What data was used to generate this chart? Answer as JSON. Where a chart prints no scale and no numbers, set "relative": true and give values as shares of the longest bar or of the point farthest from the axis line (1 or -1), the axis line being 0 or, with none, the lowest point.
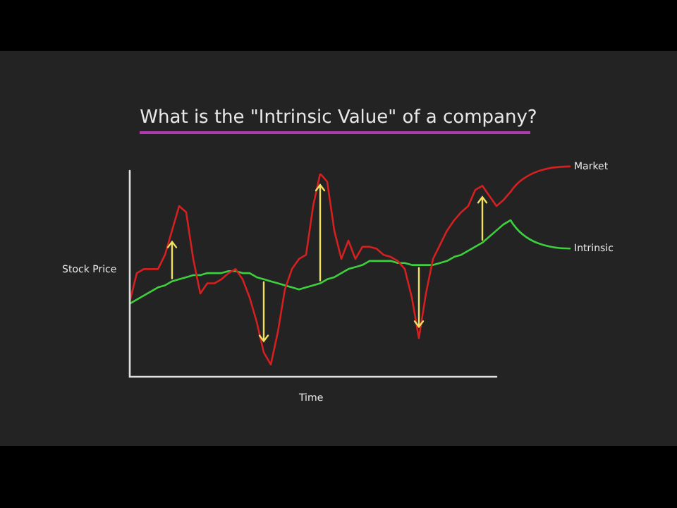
{
  "chart_data": {
    "type": "line",
    "title": "What is the \"Intrinsic Value\" of a company?",
    "xlabel": "Time",
    "ylabel": "Stock Price",
    "relative": true,
    "legend": false,
    "marker": "none",
    "categories": [
      null,
      null,
      null,
      null,
      null,
      null,
      null,
      null,
      null,
      null,
      null,
      null,
      null,
      null,
      null,
      null,
      null,
      null,
      null,
      null,
      null,
      null,
      null,
      null,
      null,
      null,
      null,
      null,
      null,
      null,
      null,
      null,
      null,
      null,
      null,
      null,
      null,
      null,
      null,
      null,
      null,
      null,
      null,
      null,
      null,
      null,
      null,
      null,
      null,
      null,
      null,
      null,
      null,
      null,
      null
    ],
    "series": [
      {
        "name": "Market",
        "color": "#d42020",
        "values": [
          0.37,
          0.51,
          0.53,
          0.53,
          0.53,
          0.6,
          0.72,
          0.84,
          0.81,
          0.58,
          0.41,
          0.46,
          0.46,
          0.48,
          0.51,
          0.53,
          0.48,
          0.39,
          0.27,
          0.12,
          0.06,
          0.22,
          0.43,
          0.53,
          0.58,
          0.6,
          0.84,
          1,
          0.96,
          0.72,
          0.58,
          0.67,
          0.58,
          0.64,
          0.64,
          0.63,
          0.6,
          0.59,
          0.57,
          0.53,
          0.39,
          0.19,
          0.41,
          0.58,
          0.65,
          0.72,
          0.77,
          0.81,
          0.84,
          0.92,
          0.94,
          0.89,
          0.84,
          0.87,
          0.91
        ]
      },
      {
        "name": "Intrinsic",
        "color": "#3ecf3e",
        "values": [
          0.36,
          0.38,
          0.4,
          0.42,
          0.44,
          0.45,
          0.47,
          0.48,
          0.49,
          0.5,
          0.5,
          0.51,
          0.51,
          0.51,
          0.52,
          0.52,
          0.51,
          0.51,
          0.49,
          0.48,
          0.47,
          0.46,
          0.45,
          0.44,
          0.43,
          0.44,
          0.45,
          0.46,
          0.48,
          0.49,
          0.51,
          0.53,
          0.54,
          0.55,
          0.57,
          0.57,
          0.57,
          0.57,
          0.56,
          0.56,
          0.55,
          0.55,
          0.55,
          0.55,
          0.56,
          0.57,
          0.59,
          0.6,
          0.62,
          0.64,
          0.66,
          0.69,
          0.72,
          0.75,
          0.77
        ]
      }
    ]
  }
}
